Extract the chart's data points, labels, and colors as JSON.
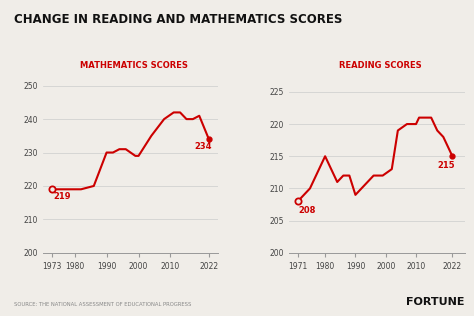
{
  "title": "CHANGE IN READING AND MATHEMATICS SCORES",
  "title_fontsize": 8.5,
  "math_label": "MATHEMATICS SCORES",
  "reading_label": "READING SCORES",
  "line_color": "#cc0000",
  "bg_color": "#f0ede8",
  "source_text": "SOURCE: THE NATIONAL ASSESSMENT OF EDUCATIONAL PROGRESS",
  "fortune_text": "FORTUNE",
  "math_x": [
    1973,
    1978,
    1982,
    1986,
    1990,
    1992,
    1994,
    1996,
    1999,
    2000,
    2004,
    2008,
    2011,
    2013,
    2015,
    2017,
    2019,
    2022
  ],
  "math_y": [
    219,
    219,
    219,
    220,
    230,
    230,
    231,
    231,
    229,
    229,
    235,
    240,
    242,
    242,
    240,
    240,
    241,
    234
  ],
  "math_last_label": "234",
  "math_first_label": "219",
  "math_ylim": [
    200,
    252
  ],
  "math_yticks": [
    200,
    210,
    220,
    230,
    240,
    250
  ],
  "math_xticks": [
    1973,
    1980,
    1990,
    2000,
    2010,
    2022
  ],
  "reading_x": [
    1971,
    1975,
    1980,
    1984,
    1986,
    1988,
    1990,
    1992,
    1994,
    1996,
    1999,
    2002,
    2004,
    2007,
    2008,
    2010,
    2011,
    2012,
    2013,
    2015,
    2017,
    2019,
    2022
  ],
  "reading_y": [
    208,
    210,
    215,
    211,
    212,
    212,
    209,
    210,
    211,
    212,
    212,
    213,
    219,
    220,
    220,
    220,
    221,
    221,
    221,
    221,
    219,
    218,
    215
  ],
  "reading_last_label": "215",
  "reading_first_label": "208",
  "reading_ylim": [
    200,
    227
  ],
  "reading_yticks": [
    200,
    205,
    210,
    215,
    220,
    225
  ],
  "reading_xticks": [
    1971,
    1980,
    1990,
    2000,
    2010,
    2022
  ]
}
